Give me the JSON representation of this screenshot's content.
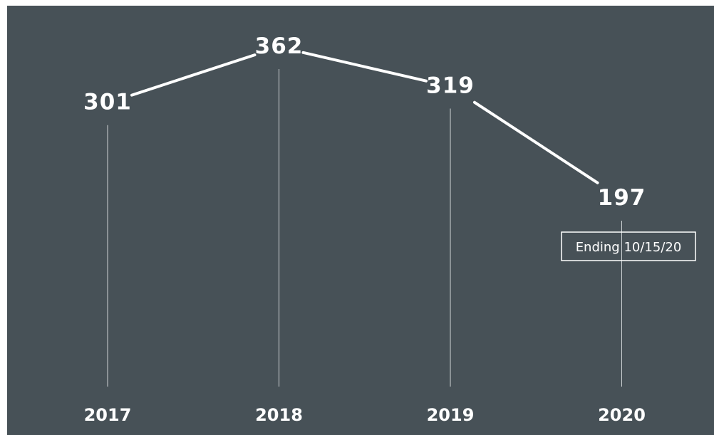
{
  "chart_data": {
    "type": "line",
    "categories": [
      "2017",
      "2018",
      "2019",
      "2020"
    ],
    "values": [
      301,
      362,
      319,
      197
    ],
    "title": "",
    "xlabel": "",
    "ylabel": "",
    "grid": false,
    "annotation": "Ending 10/15/20",
    "colors": {
      "background": "#475157",
      "line": "#ffffff",
      "drop_line": "#cfd4d6",
      "text": "#ffffff"
    }
  }
}
